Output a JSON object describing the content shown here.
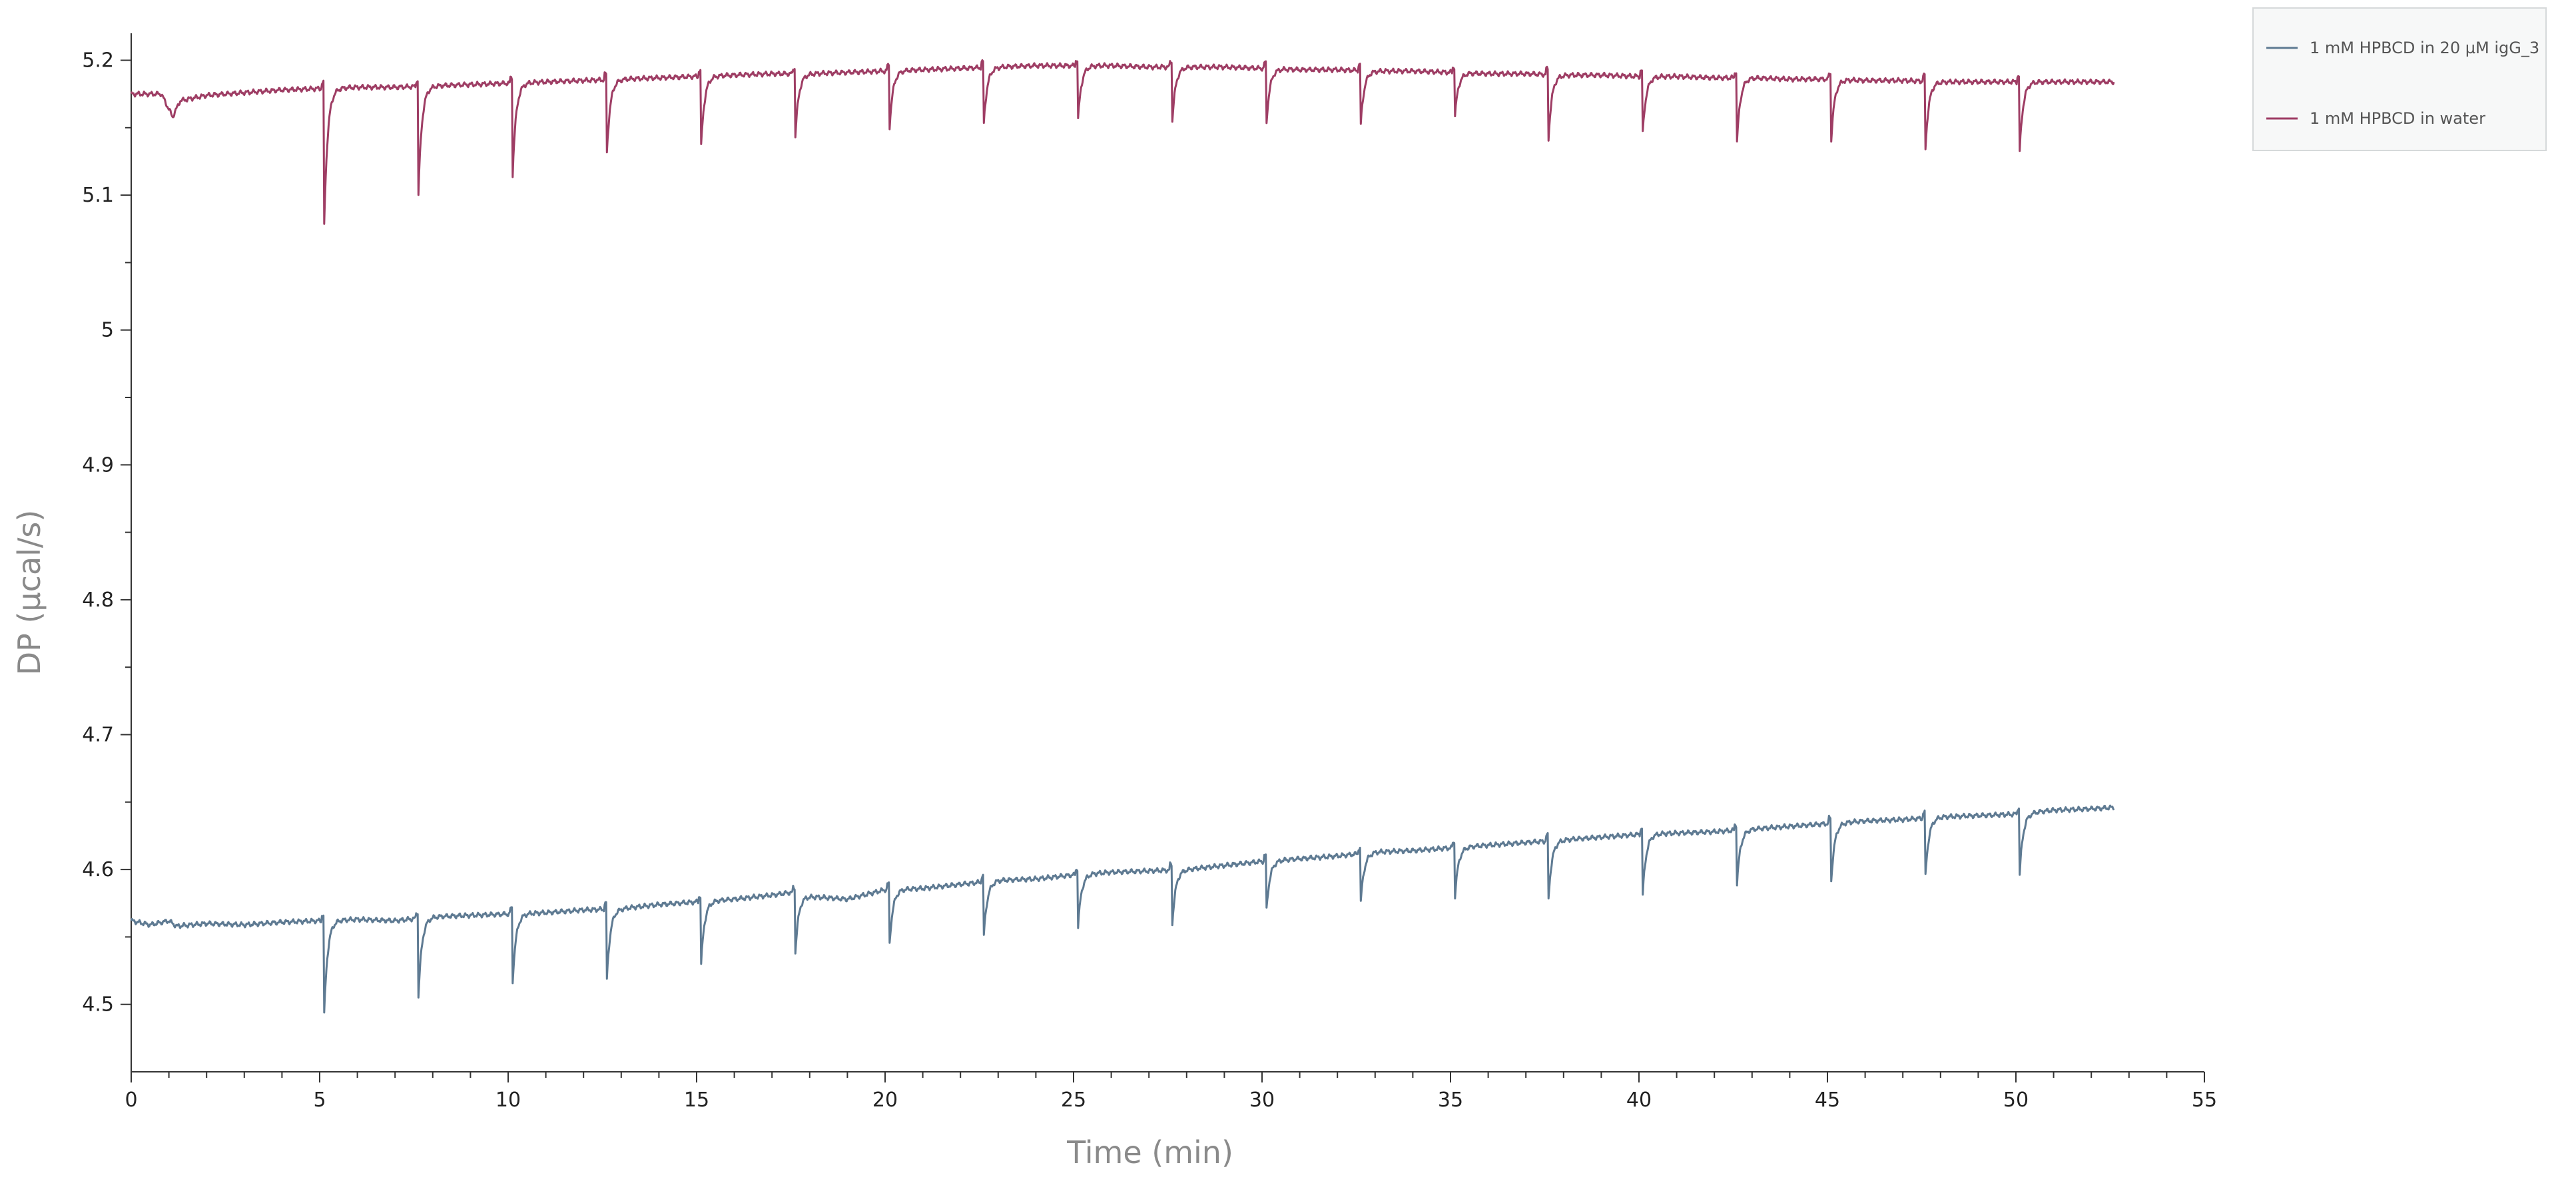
{
  "chart_data": {
    "type": "line",
    "title": "",
    "xlabel": "Time (min)",
    "ylabel": "DP (µcal/s)",
    "xlim": [
      0,
      55
    ],
    "ylim": [
      4.45,
      5.22
    ],
    "xticks": [
      0,
      5,
      10,
      15,
      20,
      25,
      30,
      35,
      40,
      45,
      50,
      55
    ],
    "yticks": [
      4.5,
      4.6,
      4.7,
      4.8,
      4.9,
      5,
      5.1,
      5.2
    ],
    "ytick_labels": [
      "4.5",
      "4.6",
      "4.7",
      "4.8",
      "4.9",
      "5",
      "5.1",
      "5.2"
    ],
    "grid": false,
    "legend_position": "top-right",
    "injections": [
      {
        "t": 5.1,
        "ds": -0.087,
        "dw": -0.127
      },
      {
        "t": 7.6,
        "ds": -0.073,
        "dw": -0.1
      },
      {
        "t": 10.1,
        "ds": -0.063,
        "dw": -0.085
      },
      {
        "t": 12.6,
        "ds": -0.065,
        "dw": -0.068
      },
      {
        "t": 15.1,
        "ds": -0.058,
        "dw": -0.065
      },
      {
        "t": 17.6,
        "ds": -0.055,
        "dw": -0.058
      },
      {
        "t": 20.1,
        "ds": -0.05,
        "dw": -0.052
      },
      {
        "t": 22.6,
        "ds": -0.05,
        "dw": -0.052
      },
      {
        "t": 25.1,
        "ds": -0.048,
        "dw": -0.05
      },
      {
        "t": 27.6,
        "ds": -0.05,
        "dw": -0.05
      },
      {
        "t": 30.1,
        "ds": -0.045,
        "dw": -0.05
      },
      {
        "t": 32.6,
        "ds": -0.045,
        "dw": -0.05
      },
      {
        "t": 35.1,
        "ds": -0.045,
        "dw": -0.04
      },
      {
        "t": 37.6,
        "ds": -0.043,
        "dw": -0.048
      },
      {
        "t": 40.1,
        "ds": -0.045,
        "dw": -0.042
      },
      {
        "t": 42.6,
        "ds": -0.04,
        "dw": -0.048
      },
      {
        "t": 45.1,
        "ds": -0.043,
        "dw": -0.045
      },
      {
        "t": 47.6,
        "ds": -0.043,
        "dw": -0.05
      },
      {
        "t": 50.1,
        "ds": -0.045,
        "dw": -0.052
      }
    ],
    "series": [
      {
        "name": "1 mM HPBCD in 20 µM igG_3",
        "color": "#5e7a92",
        "x": [
          0,
          0.5,
          1.0,
          1.2,
          2,
          3,
          4,
          5,
          6,
          7,
          8,
          9,
          10,
          11,
          12,
          13,
          14,
          15,
          16,
          17,
          17.5,
          18,
          19,
          20,
          21,
          22,
          23,
          24,
          25,
          26,
          27,
          28,
          29,
          30,
          31,
          32,
          33,
          34,
          35,
          36,
          37,
          38,
          39,
          40,
          41,
          42,
          43,
          44,
          45,
          46,
          47,
          48,
          49,
          50,
          51,
          52,
          52.6
        ],
        "y": [
          4.562,
          4.559,
          4.562,
          4.558,
          4.56,
          4.559,
          4.561,
          4.562,
          4.563,
          4.562,
          4.565,
          4.566,
          4.567,
          4.568,
          4.57,
          4.571,
          4.574,
          4.576,
          4.578,
          4.581,
          4.583,
          4.58,
          4.578,
          4.585,
          4.586,
          4.589,
          4.592,
          4.593,
          4.596,
          4.598,
          4.599,
          4.6,
          4.603,
          4.606,
          4.608,
          4.61,
          4.613,
          4.614,
          4.616,
          4.618,
          4.62,
          4.622,
          4.624,
          4.626,
          4.627,
          4.628,
          4.63,
          4.632,
          4.634,
          4.636,
          4.637,
          4.639,
          4.64,
          4.641,
          4.644,
          4.645,
          4.646
        ]
      },
      {
        "name": "1 mM HPBCD in water",
        "color": "#9e3d64",
        "x": [
          0,
          0.8,
          1.1,
          1.3,
          2,
          3,
          4,
          5,
          6,
          7,
          8,
          9,
          10,
          11,
          12,
          13,
          14,
          15,
          16,
          17,
          18,
          19,
          20,
          21,
          22,
          23,
          24,
          25,
          26,
          27,
          28,
          29,
          30,
          31,
          32,
          33,
          34,
          35,
          36,
          37,
          38,
          39,
          40,
          41,
          42,
          43,
          44,
          45,
          46,
          47,
          48,
          49,
          50,
          51,
          52,
          52.6
        ],
        "y": [
          5.175,
          5.175,
          5.158,
          5.17,
          5.174,
          5.176,
          5.178,
          5.179,
          5.18,
          5.18,
          5.181,
          5.182,
          5.183,
          5.184,
          5.185,
          5.186,
          5.187,
          5.188,
          5.189,
          5.19,
          5.19,
          5.191,
          5.192,
          5.193,
          5.194,
          5.195,
          5.196,
          5.196,
          5.196,
          5.195,
          5.195,
          5.195,
          5.194,
          5.193,
          5.193,
          5.192,
          5.192,
          5.191,
          5.19,
          5.19,
          5.189,
          5.189,
          5.188,
          5.188,
          5.187,
          5.187,
          5.186,
          5.186,
          5.185,
          5.185,
          5.184,
          5.184,
          5.184,
          5.184,
          5.184,
          5.184
        ]
      }
    ]
  }
}
